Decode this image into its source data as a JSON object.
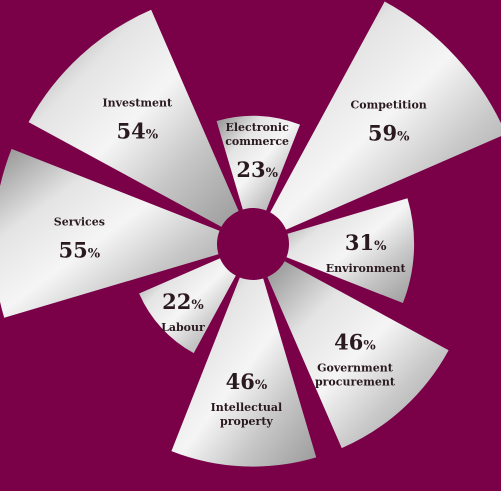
{
  "chart_data": {
    "type": "polar-area",
    "title": "",
    "unit": "%",
    "categories": [
      {
        "label": [
          "Electronic",
          "commerce"
        ],
        "value": 23
      },
      {
        "label": [
          "Competition"
        ],
        "value": 59
      },
      {
        "label": [
          "Environment"
        ],
        "value": 31
      },
      {
        "label": [
          "Government",
          "procurement"
        ],
        "value": 46
      },
      {
        "label": [
          "Intellectual",
          "property"
        ],
        "value": 46
      },
      {
        "label": [
          "Labour"
        ],
        "value": 22
      },
      {
        "label": [
          "Services"
        ],
        "value": 55
      },
      {
        "label": [
          "Investment"
        ],
        "value": 54
      }
    ]
  },
  "colors": {
    "background": "#7a0048",
    "hub": "#7a0048",
    "wedge_light": "#f2f2f2",
    "wedge_dark": "#9a9a9a",
    "text": "#2a1a1f"
  }
}
